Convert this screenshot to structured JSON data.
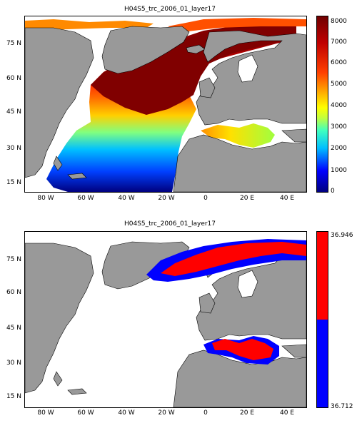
{
  "panels": [
    {
      "title": "H04S5_trc_2006_01_layer17",
      "lat_labels": [
        "75 N",
        "60 N",
        "45 N",
        "30 N",
        "15 N"
      ],
      "lon_labels": [
        "80 W",
        "60 W",
        "40 W",
        "20 W",
        "0",
        "20 E",
        "40 E"
      ],
      "colorbar": {
        "type": "continuous",
        "ticks": [
          "8000",
          "7000",
          "6000",
          "5000",
          "4000",
          "3000",
          "2000",
          "1000",
          "0"
        ],
        "colors": [
          "#00007f",
          "#0000ff",
          "#007fff",
          "#00ffff",
          "#7fff7f",
          "#ffff00",
          "#ff7f00",
          "#ff0000",
          "#7f0000"
        ]
      },
      "map": {
        "land_color": "#999999",
        "ocean_color": "#ffffff"
      }
    },
    {
      "title": "H04S5_trc_2006_01_layer17",
      "lat_labels": [
        "75 N",
        "60 N",
        "45 N",
        "30 N",
        "15 N"
      ],
      "lon_labels": [
        "80 W",
        "60 W",
        "40 W",
        "20 W",
        "0",
        "20 E",
        "40 E"
      ],
      "colorbar": {
        "type": "two-class",
        "top_label": "36.946",
        "bottom_label": "36.712",
        "colors": [
          "#ff0000",
          "#0000ff"
        ]
      },
      "map": {
        "land_color": "#999999",
        "ocean_color": "#ffffff"
      }
    }
  ]
}
